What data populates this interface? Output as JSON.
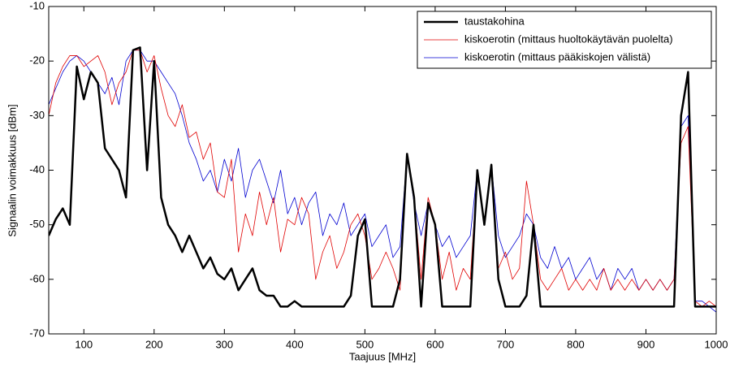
{
  "chart_data": {
    "type": "line",
    "xlabel": "Taajuus [MHz]",
    "ylabel": "Signaalin voimakkuus [dBm]",
    "xlim": [
      50,
      1000
    ],
    "xticks": [
      100,
      200,
      300,
      400,
      500,
      600,
      700,
      800,
      900,
      1000
    ],
    "ylim": [
      -70,
      -10
    ],
    "yticks": [
      -70,
      -60,
      -50,
      -40,
      -30,
      -20,
      -10
    ],
    "grid": false,
    "legend": "upper right",
    "x": [
      50,
      60,
      70,
      80,
      90,
      100,
      110,
      120,
      130,
      140,
      150,
      160,
      170,
      180,
      190,
      200,
      210,
      220,
      230,
      240,
      250,
      260,
      270,
      280,
      290,
      300,
      310,
      320,
      330,
      340,
      350,
      360,
      370,
      380,
      390,
      400,
      410,
      420,
      430,
      440,
      450,
      460,
      470,
      480,
      490,
      500,
      510,
      520,
      530,
      540,
      550,
      560,
      570,
      580,
      590,
      600,
      610,
      620,
      630,
      640,
      650,
      660,
      670,
      680,
      690,
      700,
      710,
      720,
      730,
      740,
      750,
      760,
      770,
      780,
      790,
      800,
      810,
      820,
      830,
      840,
      850,
      860,
      870,
      880,
      890,
      900,
      910,
      920,
      930,
      940,
      950,
      960,
      970,
      980,
      990,
      1000
    ],
    "series": [
      {
        "name": "taustakohina",
        "color": "#000000",
        "width": 2.5,
        "values": [
          -52,
          -49,
          -47,
          -50,
          -21,
          -27,
          -22,
          -24,
          -36,
          -38,
          -40,
          -45,
          -18,
          -17.5,
          -40,
          -20,
          -45,
          -50,
          -52,
          -55,
          -52,
          -55,
          -58,
          -56,
          -59,
          -60,
          -58,
          -62,
          -60,
          -58,
          -62,
          -63,
          -63,
          -65,
          -65,
          -64,
          -65,
          -65,
          -65,
          -65,
          -65,
          -65,
          -65,
          -63,
          -52,
          -49,
          -65,
          -65,
          -65,
          -65,
          -60,
          -37,
          -45,
          -65,
          -46,
          -50,
          -65,
          -65,
          -65,
          -65,
          -65,
          -40,
          -50,
          -39,
          -60,
          -65,
          -65,
          -65,
          -63,
          -50,
          -65,
          -65,
          -65,
          -65,
          -65,
          -65,
          -65,
          -65,
          -65,
          -65,
          -65,
          -65,
          -65,
          -65,
          -65,
          -65,
          -65,
          -65,
          -65,
          -65,
          -30,
          -22,
          -65,
          -65,
          -65,
          -65
        ]
      },
      {
        "name": "kiskoerotin (mittaus huoltokäytävän puolelta)",
        "color": "#e00000",
        "width": 0.8,
        "values": [
          -30,
          -24,
          -21,
          -19,
          -19,
          -21,
          -20,
          -19,
          -22,
          -28,
          -24,
          -22,
          -18,
          -18,
          -22,
          -19,
          -25,
          -30,
          -32,
          -28,
          -34,
          -33,
          -38,
          -35,
          -44,
          -45,
          -38,
          -55,
          -48,
          -52,
          -44,
          -50,
          -45,
          -55,
          -49,
          -50,
          -45,
          -48,
          -60,
          -55,
          -52,
          -58,
          -55,
          -50,
          -48,
          -52,
          -60,
          -58,
          -55,
          -58,
          -62,
          -37,
          -45,
          -60,
          -45,
          -50,
          -60,
          -55,
          -62,
          -58,
          -60,
          -40,
          -50,
          -39,
          -58,
          -55,
          -60,
          -58,
          -42,
          -50,
          -60,
          -62,
          -60,
          -58,
          -62,
          -60,
          -62,
          -60,
          -62,
          -58,
          -62,
          -60,
          -62,
          -60,
          -62,
          -60,
          -62,
          -60,
          -62,
          -60,
          -35,
          -32,
          -64,
          -65,
          -64,
          -65
        ]
      },
      {
        "name": "kiskoerotin (mittaus pääkiskojen välistä)",
        "color": "#0000d0",
        "width": 0.8,
        "values": [
          -28,
          -25,
          -22,
          -20,
          -19,
          -20,
          -22,
          -24,
          -26,
          -23,
          -28,
          -20,
          -18,
          -18,
          -20,
          -20,
          -22,
          -24,
          -26,
          -30,
          -35,
          -38,
          -42,
          -40,
          -44,
          -38,
          -42,
          -36,
          -45,
          -40,
          -38,
          -42,
          -46,
          -40,
          -48,
          -45,
          -50,
          -46,
          -44,
          -52,
          -48,
          -50,
          -46,
          -52,
          -50,
          -48,
          -54,
          -52,
          -50,
          -56,
          -54,
          -37,
          -46,
          -52,
          -46,
          -50,
          -54,
          -52,
          -56,
          -54,
          -52,
          -40,
          -50,
          -39,
          -52,
          -56,
          -54,
          -52,
          -48,
          -50,
          -56,
          -58,
          -54,
          -58,
          -56,
          -60,
          -58,
          -56,
          -60,
          -58,
          -62,
          -58,
          -60,
          -58,
          -62,
          -60,
          -62,
          -60,
          -62,
          -60,
          -32,
          -30,
          -64,
          -64,
          -65,
          -66
        ]
      }
    ]
  }
}
